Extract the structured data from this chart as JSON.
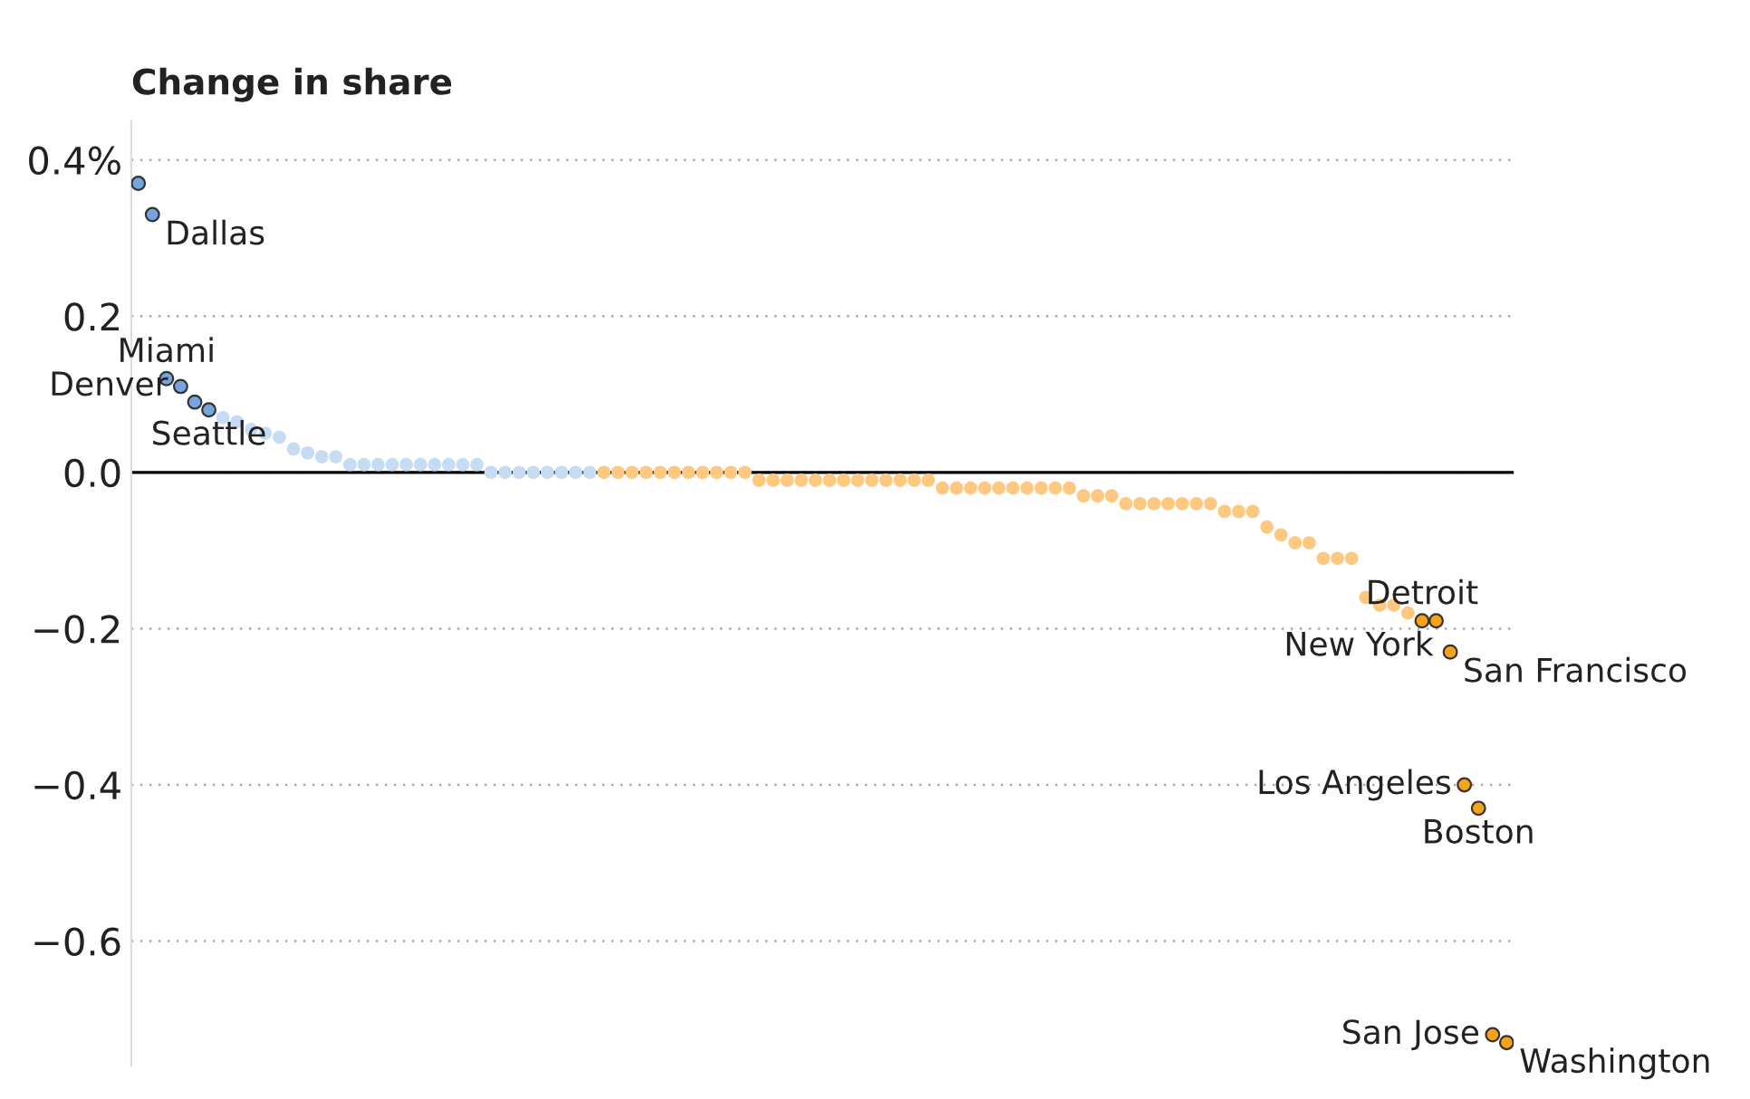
{
  "chart_data": {
    "type": "scatter",
    "ylabel": "Change in share",
    "categories": [
      null,
      null,
      null,
      null,
      null,
      null,
      null,
      null,
      null,
      null,
      null,
      null,
      null,
      null,
      null,
      null,
      null,
      null,
      null,
      null,
      null,
      null,
      null,
      null,
      null,
      null,
      null,
      null,
      null,
      null,
      null,
      null,
      null,
      null,
      null,
      null,
      null,
      null,
      null,
      null,
      null,
      null,
      null,
      null,
      null,
      null,
      null,
      null,
      null,
      null,
      null,
      null,
      null,
      null,
      null,
      null,
      null,
      null,
      null,
      null,
      null,
      null,
      null,
      null,
      null,
      null,
      null,
      null,
      null,
      null,
      null,
      null,
      null,
      null,
      null,
      null,
      null,
      null,
      null,
      null,
      null,
      null,
      null,
      null,
      null,
      null,
      null,
      null,
      null,
      null,
      null,
      null,
      null,
      null,
      null,
      null,
      null,
      null
    ],
    "series": [
      {
        "color": "#74a5dd",
        "values": [
          0.37,
          0.33,
          0.12,
          0.11,
          0.09,
          0.08,
          null,
          null,
          null,
          null,
          null,
          null,
          null,
          null,
          null,
          null,
          null,
          null,
          null,
          null,
          null,
          null,
          null,
          null,
          null,
          null,
          null,
          null,
          null,
          null,
          null,
          null,
          null,
          null,
          null,
          null,
          null,
          null,
          null,
          null,
          null,
          null,
          null,
          null,
          null,
          null,
          null,
          null,
          null,
          null,
          null,
          null,
          null,
          null,
          null,
          null,
          null,
          null,
          null,
          null,
          null,
          null,
          null,
          null,
          null,
          null,
          null,
          null,
          null,
          null,
          null,
          null,
          null,
          null,
          null,
          null,
          null,
          null,
          null,
          null,
          null,
          null,
          null,
          null,
          null,
          null,
          null,
          null,
          null,
          null,
          null,
          null,
          null,
          null,
          null,
          null,
          null,
          null
        ],
        "value_labels": [
          null,
          "Dallas",
          "Miami",
          "Denver",
          null,
          "Seattle",
          null,
          null,
          null,
          null,
          null,
          null,
          null,
          null,
          null,
          null,
          null,
          null,
          null,
          null,
          null,
          null,
          null,
          null,
          null,
          null,
          null,
          null,
          null,
          null,
          null,
          null,
          null,
          null,
          null,
          null,
          null,
          null,
          null,
          null,
          null,
          null,
          null,
          null,
          null,
          null,
          null,
          null,
          null,
          null,
          null,
          null,
          null,
          null,
          null,
          null,
          null,
          null,
          null,
          null,
          null,
          null,
          null,
          null,
          null,
          null,
          null,
          null,
          null,
          null,
          null,
          null,
          null,
          null,
          null,
          null,
          null,
          null,
          null,
          null,
          null,
          null,
          null,
          null,
          null,
          null,
          null,
          null,
          null,
          null,
          null,
          null,
          null,
          null,
          null,
          null,
          null,
          null
        ]
      },
      {
        "color": "#c6dcf5",
        "values": [
          null,
          null,
          null,
          null,
          null,
          null,
          0.07,
          0.065,
          0.055,
          0.05,
          0.045,
          0.03,
          0.025,
          0.02,
          0.02,
          0.01,
          0.01,
          0.01,
          0.01,
          0.01,
          0.01,
          0.01,
          0.01,
          0.01,
          0.01,
          0,
          0,
          0,
          0,
          0,
          0,
          0,
          0,
          null,
          null,
          null,
          null,
          null,
          null,
          null,
          null,
          null,
          null,
          null,
          null,
          null,
          null,
          null,
          null,
          null,
          null,
          null,
          null,
          null,
          null,
          null,
          null,
          null,
          null,
          null,
          null,
          null,
          null,
          null,
          null,
          null,
          null,
          null,
          null,
          null,
          null,
          null,
          null,
          null,
          null,
          null,
          null,
          null,
          null,
          null,
          null,
          null,
          null,
          null,
          null,
          null,
          null,
          null,
          null,
          null,
          null,
          null,
          null,
          null,
          null,
          null,
          null,
          null
        ]
      },
      {
        "color": "#ffc880",
        "values": [
          null,
          null,
          null,
          null,
          null,
          null,
          null,
          null,
          null,
          null,
          null,
          null,
          null,
          null,
          null,
          null,
          null,
          null,
          null,
          null,
          null,
          null,
          null,
          null,
          null,
          null,
          null,
          null,
          null,
          null,
          null,
          null,
          null,
          0,
          0,
          0,
          0,
          0,
          0,
          0,
          0,
          0,
          0,
          0,
          -0.01,
          -0.01,
          -0.01,
          -0.01,
          -0.01,
          -0.01,
          -0.01,
          -0.01,
          -0.01,
          -0.01,
          -0.01,
          -0.01,
          -0.01,
          -0.02,
          -0.02,
          -0.02,
          -0.02,
          -0.02,
          -0.02,
          -0.02,
          -0.02,
          -0.02,
          -0.02,
          -0.03,
          -0.03,
          -0.03,
          -0.04,
          -0.04,
          -0.04,
          -0.04,
          -0.04,
          -0.04,
          -0.04,
          -0.05,
          -0.05,
          -0.05,
          -0.07,
          -0.08,
          -0.09,
          -0.09,
          -0.11,
          -0.11,
          -0.11,
          -0.16,
          -0.17,
          -0.17,
          -0.18,
          null,
          null,
          null,
          null,
          null,
          null,
          null
        ]
      },
      {
        "color": "#f7a21b",
        "values": [
          null,
          null,
          null,
          null,
          null,
          null,
          null,
          null,
          null,
          null,
          null,
          null,
          null,
          null,
          null,
          null,
          null,
          null,
          null,
          null,
          null,
          null,
          null,
          null,
          null,
          null,
          null,
          null,
          null,
          null,
          null,
          null,
          null,
          null,
          null,
          null,
          null,
          null,
          null,
          null,
          null,
          null,
          null,
          null,
          null,
          null,
          null,
          null,
          null,
          null,
          null,
          null,
          null,
          null,
          null,
          null,
          null,
          null,
          null,
          null,
          null,
          null,
          null,
          null,
          null,
          null,
          null,
          null,
          null,
          null,
          null,
          null,
          null,
          null,
          null,
          null,
          null,
          null,
          null,
          null,
          null,
          null,
          null,
          null,
          null,
          null,
          null,
          null,
          null,
          null,
          null,
          -0.19,
          -0.19,
          -0.23,
          -0.4,
          -0.43,
          -0.72,
          -0.73
        ],
        "value_labels": [
          null,
          null,
          null,
          null,
          null,
          null,
          null,
          null,
          null,
          null,
          null,
          null,
          null,
          null,
          null,
          null,
          null,
          null,
          null,
          null,
          null,
          null,
          null,
          null,
          null,
          null,
          null,
          null,
          null,
          null,
          null,
          null,
          null,
          null,
          null,
          null,
          null,
          null,
          null,
          null,
          null,
          null,
          null,
          null,
          null,
          null,
          null,
          null,
          null,
          null,
          null,
          null,
          null,
          null,
          null,
          null,
          null,
          null,
          null,
          null,
          null,
          null,
          null,
          null,
          null,
          null,
          null,
          null,
          null,
          null,
          null,
          null,
          null,
          null,
          null,
          null,
          null,
          null,
          null,
          null,
          null,
          null,
          null,
          null,
          null,
          null,
          null,
          null,
          null,
          null,
          null,
          "Detroit",
          "New York",
          "San Francisco",
          "Los Angeles",
          "Boston",
          "San Jose",
          "Washington"
        ]
      }
    ],
    "ylim": [
      -0.76,
      0.45
    ],
    "yticks": [
      {
        "value": 0.4,
        "label": "0.4%"
      },
      0.2,
      {
        "value": 0,
        "label": "0.0"
      },
      {
        "value": -0.2,
        "label": "−0.2"
      },
      {
        "value": -0.4,
        "label": "−0.4"
      },
      {
        "value": -0.6,
        "label": "−0.6"
      }
    ],
    "ref_lines": [
      {
        "axis": "y",
        "value": 0,
        "color": "#000000"
      }
    ],
    "grid": "y",
    "tick_labels": "y",
    "marker": "circle",
    "legend": false
  }
}
